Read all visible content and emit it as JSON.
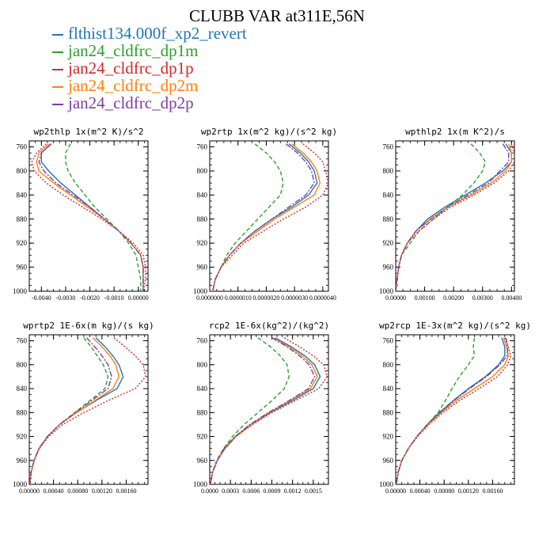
{
  "title": "CLUBB VAR at311E,56N",
  "legend": [
    {
      "label": "flthist134.000f_xp2_revert",
      "color": "#1f77b4"
    },
    {
      "label": "jan24_cldfrc_dp1m",
      "color": "#2ca02c"
    },
    {
      "label": "jan24_cldfrc_dp1p",
      "color": "#d62728"
    },
    {
      "label": "jan24_cldfrc_dp2m",
      "color": "#ff7f0e"
    },
    {
      "label": "jan24_cldfrc_dp2p",
      "color": "#7b3fa8"
    }
  ],
  "chart_data": [
    {
      "type": "line",
      "title": "wp2thlp  1x(m^2 K)/s^2",
      "xlim": [
        -0.0045,
        0.0004
      ],
      "ylim": [
        1000,
        750
      ],
      "xticks": [
        -0.004,
        -0.003,
        -0.002,
        -0.001,
        0.0
      ],
      "xtick_labels": [
        "-0.0040",
        "-0.0030",
        "-0.0020",
        "-0.0010",
        "0.00000"
      ],
      "yticks": [
        760,
        800,
        840,
        880,
        920,
        960,
        1000
      ],
      "ytick_labels": [
        "760",
        "800",
        "840",
        "880",
        "920",
        "960",
        "1000"
      ],
      "y": [
        755,
        770,
        785,
        800,
        820,
        840,
        860,
        880,
        900,
        920,
        940,
        960,
        980,
        1000
      ],
      "series": [
        {
          "name": "flthist134.000f_xp2_revert",
          "values": [
            -0.0036,
            -0.004,
            -0.004,
            -0.0037,
            -0.0032,
            -0.0026,
            -0.002,
            -0.0014,
            -0.0008,
            -0.0003,
            0.0001,
            0.0002,
            0.0002,
            0.0002
          ]
        },
        {
          "name": "jan24_cldfrc_dp1m",
          "values": [
            -0.0028,
            -0.003,
            -0.003,
            -0.0029,
            -0.0026,
            -0.0022,
            -0.0018,
            -0.0013,
            -0.0008,
            -0.0004,
            -0.0001,
            0.0,
            0.0001,
            0.0001
          ]
        },
        {
          "name": "jan24_cldfrc_dp1p",
          "values": [
            -0.0038,
            -0.0042,
            -0.0044,
            -0.0043,
            -0.0038,
            -0.0031,
            -0.0023,
            -0.0015,
            -0.0008,
            -0.0002,
            0.0002,
            0.0003,
            0.0003,
            0.0002
          ]
        },
        {
          "name": "jan24_cldfrc_dp2m",
          "values": [
            -0.0037,
            -0.0041,
            -0.0042,
            -0.0041,
            -0.0035,
            -0.0028,
            -0.0021,
            -0.0014,
            -0.0008,
            -0.0003,
            0.0001,
            0.0002,
            0.0002,
            0.0002
          ]
        },
        {
          "name": "jan24_cldfrc_dp2p",
          "values": [
            -0.0036,
            -0.004,
            -0.0041,
            -0.0039,
            -0.0034,
            -0.0027,
            -0.002,
            -0.0014,
            -0.0008,
            -0.0003,
            0.0001,
            0.0002,
            0.0002,
            0.0002
          ]
        }
      ]
    },
    {
      "type": "line",
      "title": "wp2rtp  1x(m^2 kg)/(s^2 kg)",
      "xlim": [
        0,
        4.2e-06
      ],
      "ylim": [
        1000,
        750
      ],
      "xticks": [
        0,
        1e-06,
        2e-06,
        3e-06,
        4e-06
      ],
      "xtick_labels": [
        "0.0000000",
        "0.0000010",
        "0.0000020",
        "0.0000030",
        "0.0000040"
      ],
      "yticks": [
        760,
        800,
        840,
        880,
        920,
        960,
        1000
      ],
      "ytick_labels": [
        "760",
        "800",
        "840",
        "880",
        "920",
        "960",
        "1000"
      ],
      "y": [
        755,
        770,
        785,
        800,
        820,
        840,
        860,
        880,
        900,
        920,
        940,
        960,
        980,
        1000
      ],
      "series": [
        {
          "name": "flthist134.000f_xp2_revert",
          "values": [
            2.8e-06,
            3.2e-06,
            3.5e-06,
            3.7e-06,
            3.8e-06,
            3.5e-06,
            2.9e-06,
            2.2e-06,
            1.6e-06,
            1.1e-06,
            7e-07,
            4e-07,
            2e-07,
            1e-07
          ]
        },
        {
          "name": "jan24_cldfrc_dp1m",
          "values": [
            1.6e-06,
            2e-06,
            2.3e-06,
            2.5e-06,
            2.6e-06,
            2.5e-06,
            2.1e-06,
            1.7e-06,
            1.3e-06,
            9e-07,
            6e-07,
            4e-07,
            2e-07,
            1e-07
          ]
        },
        {
          "name": "jan24_cldfrc_dp1p",
          "values": [
            3.3e-06,
            3.7e-06,
            4e-06,
            4.1e-06,
            4.2e-06,
            4e-06,
            3.4e-06,
            2.6e-06,
            1.9e-06,
            1.2e-06,
            8e-07,
            4e-07,
            2e-07,
            1e-07
          ]
        },
        {
          "name": "jan24_cldfrc_dp2m",
          "values": [
            2.9e-06,
            3.3e-06,
            3.6e-06,
            3.8e-06,
            3.9e-06,
            3.7e-06,
            3e-06,
            2.3e-06,
            1.7e-06,
            1.1e-06,
            7e-07,
            4e-07,
            2e-07,
            1e-07
          ]
        },
        {
          "name": "jan24_cldfrc_dp2p",
          "values": [
            2.7e-06,
            3.1e-06,
            3.4e-06,
            3.6e-06,
            3.7e-06,
            3.4e-06,
            2.8e-06,
            2.2e-06,
            1.6e-06,
            1.1e-06,
            7e-07,
            4e-07,
            2e-07,
            1e-07
          ]
        }
      ]
    },
    {
      "type": "line",
      "title": "wpthlp2  1x(m K^2)/s",
      "xlim": [
        0,
        0.0041
      ],
      "ylim": [
        1000,
        750
      ],
      "xticks": [
        0,
        0.001,
        0.002,
        0.003,
        0.004
      ],
      "xtick_labels": [
        "0.00000",
        "0.00100",
        "0.00200",
        "0.00300",
        "0.00400"
      ],
      "yticks": [
        760,
        800,
        840,
        880,
        920,
        960,
        1000
      ],
      "ytick_labels": [
        "760",
        "800",
        "840",
        "880",
        "920",
        "960",
        "1000"
      ],
      "y": [
        755,
        770,
        785,
        800,
        820,
        840,
        860,
        880,
        900,
        920,
        940,
        960,
        980,
        1000
      ],
      "series": [
        {
          "name": "flthist134.000f_xp2_revert",
          "values": [
            0.0038,
            0.004,
            0.004,
            0.0037,
            0.0031,
            0.0024,
            0.0017,
            0.0011,
            0.0007,
            0.0004,
            0.0002,
            0.0001,
            5e-05,
            0.0
          ]
        },
        {
          "name": "jan24_cldfrc_dp1m",
          "values": [
            0.0026,
            0.0029,
            0.0031,
            0.003,
            0.0027,
            0.0023,
            0.0018,
            0.0013,
            0.0008,
            0.0005,
            0.0002,
            0.0001,
            5e-05,
            0.0
          ]
        },
        {
          "name": "jan24_cldfrc_dp1p",
          "values": [
            0.004,
            0.0041,
            0.0041,
            0.0039,
            0.0034,
            0.0027,
            0.0019,
            0.0013,
            0.0008,
            0.0004,
            0.0002,
            0.0001,
            5e-05,
            0.0
          ]
        },
        {
          "name": "jan24_cldfrc_dp2m",
          "values": [
            0.0039,
            0.004,
            0.004,
            0.0038,
            0.0033,
            0.0026,
            0.0018,
            0.0012,
            0.0007,
            0.0004,
            0.0002,
            0.0001,
            5e-05,
            0.0
          ]
        },
        {
          "name": "jan24_cldfrc_dp2p",
          "values": [
            0.0037,
            0.0039,
            0.0039,
            0.0036,
            0.0032,
            0.0025,
            0.0018,
            0.0012,
            0.0007,
            0.0004,
            0.0002,
            0.0001,
            5e-05,
            0.0
          ]
        }
      ]
    },
    {
      "type": "line",
      "title": "wprtp2  1E-6x(m kg)/(s kg)",
      "xlim": [
        0,
        0.00196
      ],
      "ylim": [
        1000,
        750
      ],
      "xticks": [
        0,
        0.0004,
        0.0008,
        0.0012,
        0.0016
      ],
      "xtick_labels": [
        "0.00000",
        "0.00040",
        "0.00080",
        "0.00120",
        "0.00160"
      ],
      "yticks": [
        760,
        800,
        840,
        880,
        920,
        960,
        1000
      ],
      "ytick_labels": [
        "760",
        "800",
        "840",
        "880",
        "920",
        "960",
        "1000"
      ],
      "y": [
        755,
        770,
        785,
        800,
        820,
        840,
        860,
        880,
        900,
        920,
        940,
        960,
        980,
        1000
      ],
      "series": [
        {
          "name": "flthist134.000f_xp2_revert",
          "values": [
            0.0011,
            0.00125,
            0.00138,
            0.00148,
            0.00155,
            0.00145,
            0.0011,
            0.00078,
            0.0005,
            0.0003,
            0.00016,
            8e-05,
            3e-05,
            1e-05
          ]
        },
        {
          "name": "jan24_cldfrc_dp1m",
          "values": [
            0.0009,
            0.00102,
            0.00112,
            0.00122,
            0.0013,
            0.00125,
            0.001,
            0.00075,
            0.0005,
            0.0003,
            0.00016,
            8e-05,
            3e-05,
            1e-05
          ]
        },
        {
          "name": "jan24_cldfrc_dp1p",
          "values": [
            0.0014,
            0.00158,
            0.00175,
            0.00188,
            0.00192,
            0.00175,
            0.0013,
            0.0009,
            0.00055,
            0.00032,
            0.00017,
            8e-05,
            3e-05,
            1e-05
          ]
        },
        {
          "name": "jan24_cldfrc_dp2m",
          "values": [
            0.00105,
            0.0012,
            0.00133,
            0.00143,
            0.00148,
            0.00138,
            0.00108,
            0.00078,
            0.0005,
            0.0003,
            0.00016,
            8e-05,
            3e-05,
            1e-05
          ]
        },
        {
          "name": "jan24_cldfrc_dp2p",
          "values": [
            0.00095,
            0.00108,
            0.0012,
            0.0013,
            0.00136,
            0.0013,
            0.00103,
            0.00076,
            0.0005,
            0.0003,
            0.00016,
            8e-05,
            3e-05,
            1e-05
          ]
        }
      ]
    },
    {
      "type": "line",
      "title": "rcp2  1E-6x(kg^2)/(kg^2)",
      "xlim": [
        0,
        0.00172
      ],
      "ylim": [
        1000,
        750
      ],
      "xticks": [
        0,
        0.0003,
        0.0006,
        0.0009,
        0.0012,
        0.0015
      ],
      "xtick_labels": [
        "0.0000",
        "0.0003",
        "0.0006",
        "0.0009",
        "0.0012",
        "0.0015"
      ],
      "yticks": [
        760,
        800,
        840,
        880,
        920,
        960,
        1000
      ],
      "ytick_labels": [
        "760",
        "800",
        "840",
        "880",
        "920",
        "960",
        "1000"
      ],
      "y": [
        755,
        770,
        785,
        800,
        820,
        840,
        860,
        880,
        900,
        920,
        940,
        960,
        980,
        1000
      ],
      "series": [
        {
          "name": "flthist134.000f_xp2_revert",
          "values": [
            0.00095,
            0.00118,
            0.00138,
            0.00152,
            0.0016,
            0.0015,
            0.0012,
            0.00088,
            0.0006,
            0.00038,
            0.00022,
            0.00011,
            4e-05,
            1e-05
          ]
        },
        {
          "name": "jan24_cldfrc_dp1m",
          "values": [
            0.0007,
            0.00088,
            0.00102,
            0.00112,
            0.00115,
            0.00108,
            0.0009,
            0.0007,
            0.0005,
            0.00033,
            0.0002,
            0.0001,
            4e-05,
            1e-05
          ]
        },
        {
          "name": "jan24_cldfrc_dp1p",
          "values": [
            0.00108,
            0.0013,
            0.0015,
            0.00165,
            0.0017,
            0.00158,
            0.00124,
            0.0009,
            0.00062,
            0.00038,
            0.00022,
            0.00011,
            4e-05,
            1e-05
          ]
        },
        {
          "name": "jan24_cldfrc_dp2m",
          "values": [
            0.00092,
            0.00115,
            0.00134,
            0.00148,
            0.00156,
            0.00146,
            0.00117,
            0.00086,
            0.00059,
            0.00037,
            0.00021,
            0.00011,
            4e-05,
            1e-05
          ]
        },
        {
          "name": "jan24_cldfrc_dp2p",
          "values": [
            0.0009,
            0.00112,
            0.0013,
            0.00144,
            0.00152,
            0.00143,
            0.00115,
            0.00085,
            0.00058,
            0.00037,
            0.00021,
            0.00011,
            4e-05,
            1e-05
          ]
        }
      ]
    },
    {
      "type": "line",
      "title": "wp2rcp  1E-3x(m^2 kg)/(s^2 kg)",
      "xlim": [
        0,
        0.00196
      ],
      "ylim": [
        1000,
        750
      ],
      "xticks": [
        0,
        0.0004,
        0.0008,
        0.0012,
        0.0016
      ],
      "xtick_labels": [
        "0.00000",
        "0.00040",
        "0.00080",
        "0.00120",
        "0.00160"
      ],
      "yticks": [
        760,
        800,
        840,
        880,
        920,
        960,
        1000
      ],
      "ytick_labels": [
        "760",
        "800",
        "840",
        "880",
        "920",
        "960",
        "1000"
      ],
      "y": [
        755,
        770,
        785,
        800,
        820,
        840,
        860,
        880,
        900,
        920,
        940,
        960,
        980,
        1000
      ],
      "series": [
        {
          "name": "flthist134.000f_xp2_revert",
          "values": [
            0.00175,
            0.0018,
            0.0018,
            0.0017,
            0.00148,
            0.0012,
            0.00095,
            0.00072,
            0.00052,
            0.00035,
            0.00021,
            0.0001,
            4e-05,
            1e-05
          ]
        },
        {
          "name": "jan24_cldfrc_dp1m",
          "values": [
            0.0013,
            0.00128,
            0.0013,
            0.0012,
            0.00105,
            0.00093,
            0.00082,
            0.0007,
            0.00052,
            0.00035,
            0.00021,
            0.0001,
            4e-05,
            1e-05
          ]
        },
        {
          "name": "jan24_cldfrc_dp1p",
          "values": [
            0.0018,
            0.00186,
            0.0019,
            0.00185,
            0.00168,
            0.00138,
            0.00105,
            0.00078,
            0.00055,
            0.00036,
            0.00021,
            0.0001,
            4e-05,
            1e-05
          ]
        },
        {
          "name": "jan24_cldfrc_dp2m",
          "values": [
            0.00178,
            0.00183,
            0.00186,
            0.0018,
            0.0016,
            0.0013,
            0.001,
            0.00075,
            0.00053,
            0.00035,
            0.00021,
            0.0001,
            4e-05,
            1e-05
          ]
        },
        {
          "name": "jan24_cldfrc_dp2p",
          "values": [
            0.00182,
            0.00185,
            0.00184,
            0.00172,
            0.0015,
            0.00122,
            0.00096,
            0.00073,
            0.00052,
            0.00035,
            0.00021,
            0.0001,
            4e-05,
            1e-05
          ]
        }
      ]
    }
  ]
}
